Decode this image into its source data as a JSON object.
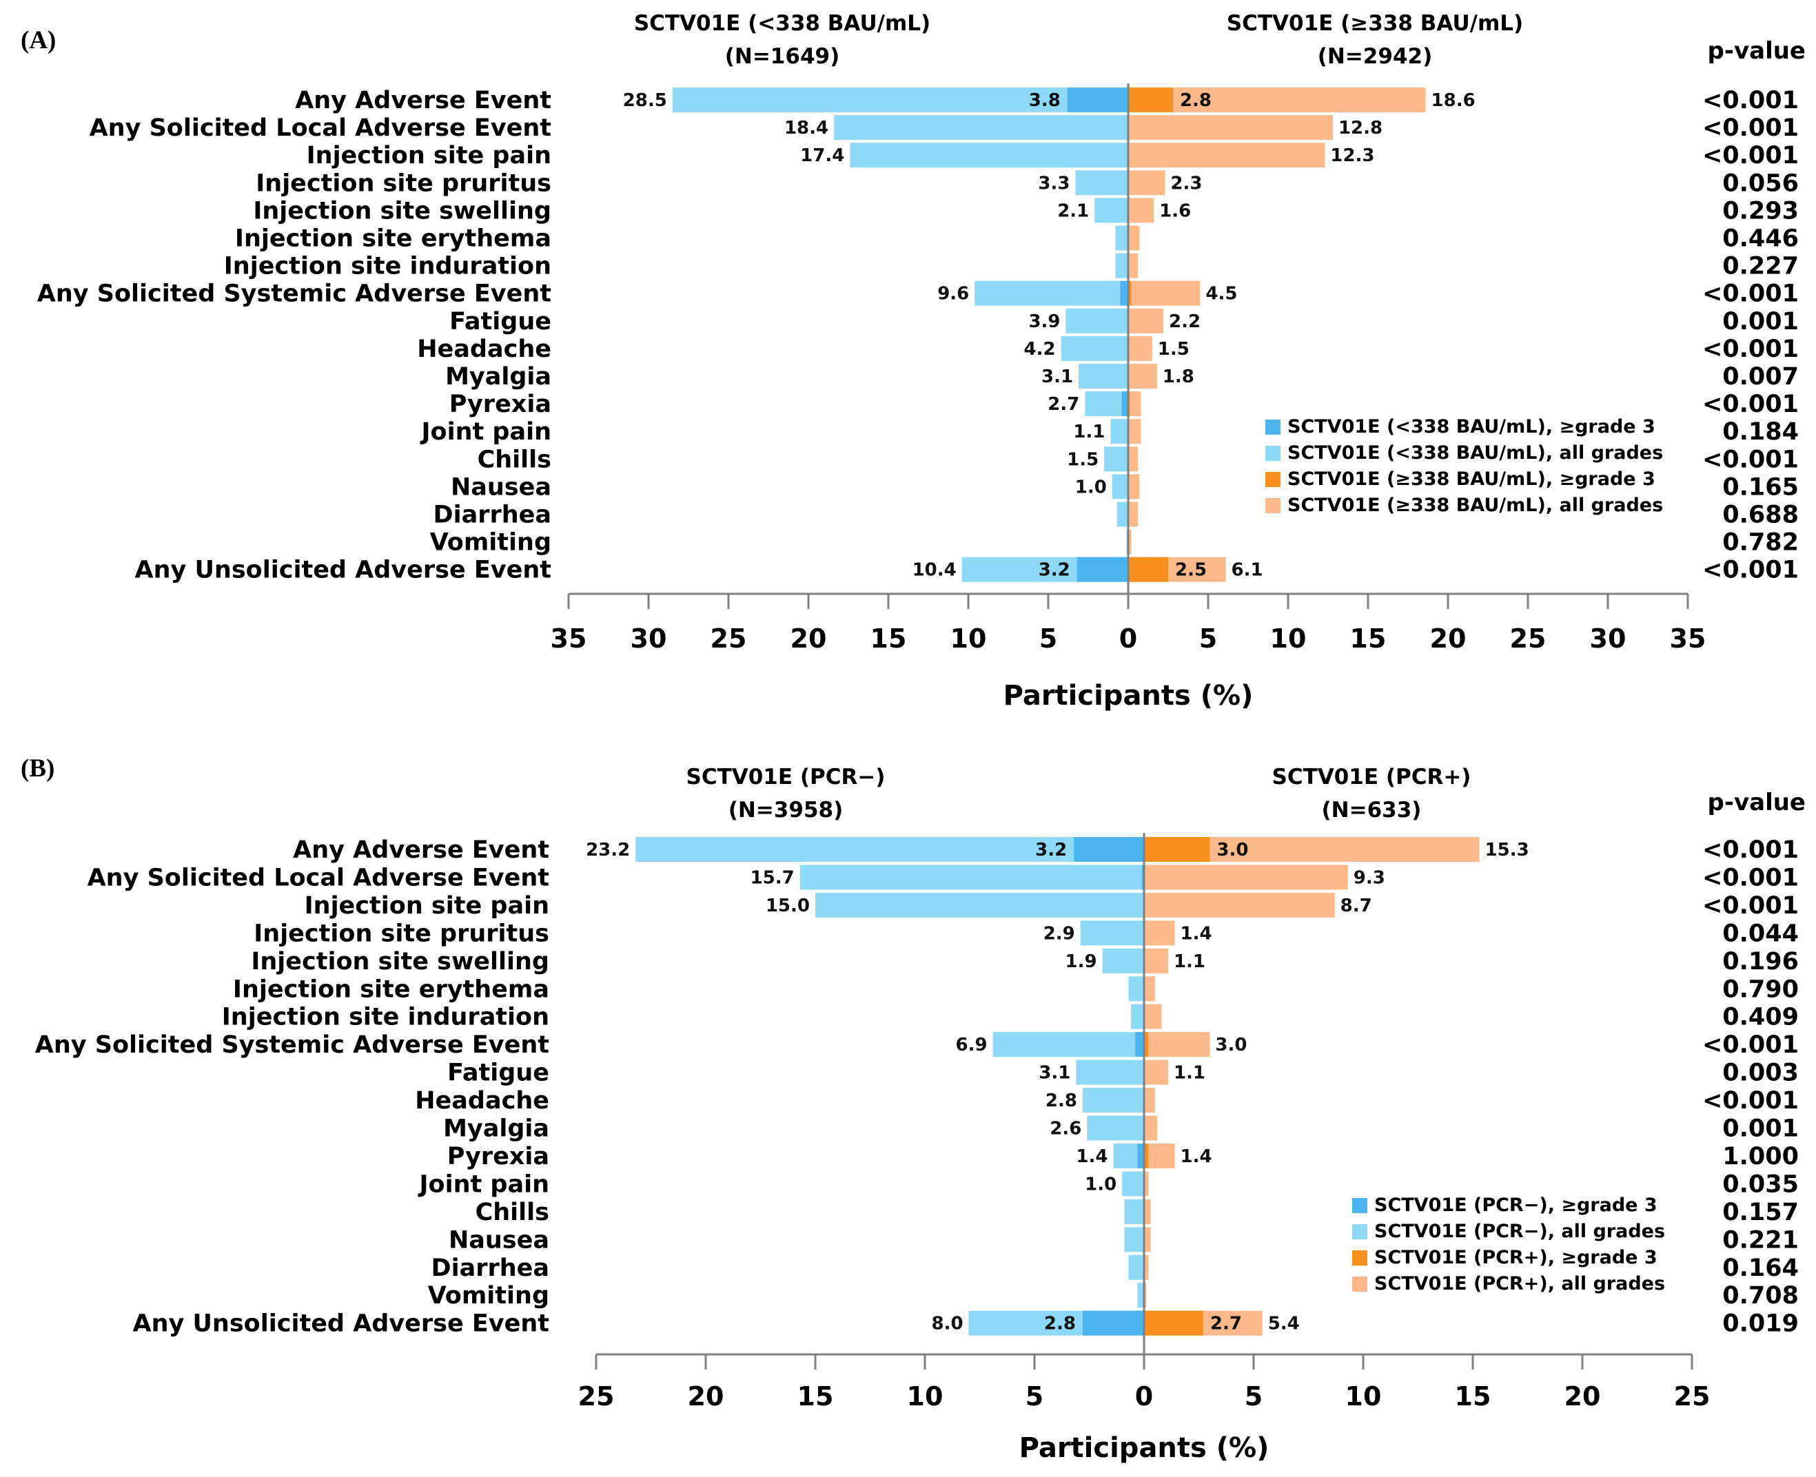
{
  "colors": {
    "left_all": "#8ED8F8",
    "left_g3": "#4BB4EE",
    "right_all": "#FDB989",
    "right_g3": "#F7901E",
    "axis": "#7f7f7f"
  },
  "p_value_header": "p-value",
  "chart_data": [
    {
      "type": "bar",
      "panel_label": "(A)",
      "left_group": {
        "title": "SCTV01E (<338 BAU/mL)",
        "n": "(N=1649)"
      },
      "right_group": {
        "title": "SCTV01E (≥338 BAU/mL)",
        "n": "(N=2942)"
      },
      "xlabel": "Participants (%)",
      "xlim": [
        -35,
        35
      ],
      "ticks": [
        35,
        30,
        25,
        20,
        15,
        10,
        5,
        0,
        5,
        10,
        15,
        20,
        25,
        30,
        35
      ],
      "legend": [
        "SCTV01E (<338 BAU/mL), ≥grade 3",
        "SCTV01E (<338 BAU/mL), all grades",
        "SCTV01E (≥338 BAU/mL), ≥grade 3",
        "SCTV01E (≥338 BAU/mL), all grades"
      ],
      "rows": [
        {
          "label": "Any Adverse Event",
          "left": 28.5,
          "left_label": "28.5",
          "left_g3": 3.8,
          "left_g3_label": "3.8",
          "right": 18.6,
          "right_label": "18.6",
          "right_g3": 2.8,
          "right_g3_label": "2.8",
          "p": "<0.001"
        },
        {
          "label": "Any Solicited Local Adverse Event",
          "left": 18.4,
          "left_label": "18.4",
          "left_g3": 0,
          "left_g3_label": "",
          "right": 12.8,
          "right_label": "12.8",
          "right_g3": 0,
          "right_g3_label": "",
          "p": "<0.001"
        },
        {
          "label": "Injection site pain",
          "left": 17.4,
          "left_label": "17.4",
          "left_g3": 0,
          "left_g3_label": "",
          "right": 12.3,
          "right_label": "12.3",
          "right_g3": 0,
          "right_g3_label": "",
          "p": "<0.001"
        },
        {
          "label": "Injection site pruritus",
          "left": 3.3,
          "left_label": "3.3",
          "left_g3": 0,
          "left_g3_label": "",
          "right": 2.3,
          "right_label": "2.3",
          "right_g3": 0,
          "right_g3_label": "",
          "p": "0.056"
        },
        {
          "label": "Injection site swelling",
          "left": 2.1,
          "left_label": "2.1",
          "left_g3": 0,
          "left_g3_label": "",
          "right": 1.6,
          "right_label": "1.6",
          "right_g3": 0,
          "right_g3_label": "",
          "p": "0.293"
        },
        {
          "label": "Injection site erythema",
          "left": 0.8,
          "left_label": "",
          "left_g3": 0,
          "left_g3_label": "",
          "right": 0.7,
          "right_label": "",
          "right_g3": 0,
          "right_g3_label": "",
          "p": "0.446"
        },
        {
          "label": "Injection site induration",
          "left": 0.8,
          "left_label": "",
          "left_g3": 0,
          "left_g3_label": "",
          "right": 0.6,
          "right_label": "",
          "right_g3": 0,
          "right_g3_label": "",
          "p": "0.227"
        },
        {
          "label": "Any Solicited Systemic Adverse Event",
          "left": 9.6,
          "left_label": "9.6",
          "left_g3": 0.5,
          "left_g3_label": "",
          "right": 4.5,
          "right_label": "4.5",
          "right_g3": 0.2,
          "right_g3_label": "",
          "p": "<0.001"
        },
        {
          "label": "Fatigue",
          "left": 3.9,
          "left_label": "3.9",
          "left_g3": 0,
          "left_g3_label": "",
          "right": 2.2,
          "right_label": "2.2",
          "right_g3": 0,
          "right_g3_label": "",
          "p": "0.001"
        },
        {
          "label": "Headache",
          "left": 4.2,
          "left_label": "4.2",
          "left_g3": 0,
          "left_g3_label": "",
          "right": 1.5,
          "right_label": "1.5",
          "right_g3": 0,
          "right_g3_label": "",
          "p": "<0.001"
        },
        {
          "label": "Myalgia",
          "left": 3.1,
          "left_label": "3.1",
          "left_g3": 0,
          "left_g3_label": "",
          "right": 1.8,
          "right_label": "1.8",
          "right_g3": 0,
          "right_g3_label": "",
          "p": "0.007"
        },
        {
          "label": "Pyrexia",
          "left": 2.7,
          "left_label": "2.7",
          "left_g3": 0.4,
          "left_g3_label": "",
          "right": 0.8,
          "right_label": "",
          "right_g3": 0.1,
          "right_g3_label": "",
          "p": "<0.001"
        },
        {
          "label": "Joint pain",
          "left": 1.1,
          "left_label": "1.1",
          "left_g3": 0,
          "left_g3_label": "",
          "right": 0.8,
          "right_label": "",
          "right_g3": 0,
          "right_g3_label": "",
          "p": "0.184"
        },
        {
          "label": "Chills",
          "left": 1.5,
          "left_label": "1.5",
          "left_g3": 0,
          "left_g3_label": "",
          "right": 0.6,
          "right_label": "",
          "right_g3": 0,
          "right_g3_label": "",
          "p": "<0.001"
        },
        {
          "label": "Nausea",
          "left": 1.0,
          "left_label": "1.0",
          "left_g3": 0,
          "left_g3_label": "",
          "right": 0.7,
          "right_label": "",
          "right_g3": 0,
          "right_g3_label": "",
          "p": "0.165"
        },
        {
          "label": "Diarrhea",
          "left": 0.7,
          "left_label": "",
          "left_g3": 0,
          "left_g3_label": "",
          "right": 0.6,
          "right_label": "",
          "right_g3": 0,
          "right_g3_label": "",
          "p": "0.688"
        },
        {
          "label": "Vomiting",
          "left": 0.1,
          "left_label": "",
          "left_g3": 0,
          "left_g3_label": "",
          "right": 0.2,
          "right_label": "",
          "right_g3": 0,
          "right_g3_label": "",
          "p": "0.782"
        },
        {
          "label": "Any Unsolicited Adverse Event",
          "left": 10.4,
          "left_label": "10.4",
          "left_g3": 3.2,
          "left_g3_label": "3.2",
          "right": 6.1,
          "right_label": "6.1",
          "right_g3": 2.5,
          "right_g3_label": "2.5",
          "p": "<0.001"
        }
      ]
    },
    {
      "type": "bar",
      "panel_label": "(B)",
      "left_group": {
        "title": "SCTV01E (PCR−)",
        "n": "(N=3958)"
      },
      "right_group": {
        "title": "SCTV01E (PCR+)",
        "n": "(N=633)"
      },
      "xlabel": "Participants (%)",
      "xlim": [
        -25,
        25
      ],
      "ticks": [
        25,
        20,
        15,
        10,
        5,
        0,
        5,
        10,
        15,
        20,
        25
      ],
      "legend": [
        "SCTV01E (PCR−), ≥grade 3",
        "SCTV01E (PCR−), all grades",
        "SCTV01E (PCR+), ≥grade 3",
        "SCTV01E (PCR+), all grades"
      ],
      "rows": [
        {
          "label": "Any Adverse Event",
          "left": 23.2,
          "left_label": "23.2",
          "left_g3": 3.2,
          "left_g3_label": "3.2",
          "right": 15.3,
          "right_label": "15.3",
          "right_g3": 3.0,
          "right_g3_label": "3.0",
          "p": "<0.001"
        },
        {
          "label": "Any Solicited Local Adverse Event",
          "left": 15.7,
          "left_label": "15.7",
          "left_g3": 0.1,
          "left_g3_label": "",
          "right": 9.3,
          "right_label": "9.3",
          "right_g3": 0,
          "right_g3_label": "",
          "p": "<0.001"
        },
        {
          "label": "Injection site pain",
          "left": 15.0,
          "left_label": "15.0",
          "left_g3": 0,
          "left_g3_label": "",
          "right": 8.7,
          "right_label": "8.7",
          "right_g3": 0,
          "right_g3_label": "",
          "p": "<0.001"
        },
        {
          "label": "Injection site pruritus",
          "left": 2.9,
          "left_label": "2.9",
          "left_g3": 0,
          "left_g3_label": "",
          "right": 1.4,
          "right_label": "1.4",
          "right_g3": 0,
          "right_g3_label": "",
          "p": "0.044"
        },
        {
          "label": "Injection site swelling",
          "left": 1.9,
          "left_label": "1.9",
          "left_g3": 0,
          "left_g3_label": "",
          "right": 1.1,
          "right_label": "1.1",
          "right_g3": 0,
          "right_g3_label": "",
          "p": "0.196"
        },
        {
          "label": "Injection site erythema",
          "left": 0.7,
          "left_label": "",
          "left_g3": 0,
          "left_g3_label": "",
          "right": 0.5,
          "right_label": "",
          "right_g3": 0,
          "right_g3_label": "",
          "p": "0.790"
        },
        {
          "label": "Injection site induration",
          "left": 0.6,
          "left_label": "",
          "left_g3": 0,
          "left_g3_label": "",
          "right": 0.8,
          "right_label": "",
          "right_g3": 0,
          "right_g3_label": "",
          "p": "0.409"
        },
        {
          "label": "Any Solicited Systemic Adverse Event",
          "left": 6.9,
          "left_label": "6.9",
          "left_g3": 0.4,
          "left_g3_label": "",
          "right": 3.0,
          "right_label": "3.0",
          "right_g3": 0.2,
          "right_g3_label": "",
          "p": "<0.001"
        },
        {
          "label": "Fatigue",
          "left": 3.1,
          "left_label": "3.1",
          "left_g3": 0,
          "left_g3_label": "",
          "right": 1.1,
          "right_label": "1.1",
          "right_g3": 0,
          "right_g3_label": "",
          "p": "0.003"
        },
        {
          "label": "Headache",
          "left": 2.8,
          "left_label": "2.8",
          "left_g3": 0,
          "left_g3_label": "",
          "right": 0.5,
          "right_label": "",
          "right_g3": 0,
          "right_g3_label": "",
          "p": "<0.001"
        },
        {
          "label": "Myalgia",
          "left": 2.6,
          "left_label": "2.6",
          "left_g3": 0,
          "left_g3_label": "",
          "right": 0.6,
          "right_label": "",
          "right_g3": 0,
          "right_g3_label": "",
          "p": "0.001"
        },
        {
          "label": "Pyrexia",
          "left": 1.4,
          "left_label": "1.4",
          "left_g3": 0.3,
          "left_g3_label": "",
          "right": 1.4,
          "right_label": "1.4",
          "right_g3": 0.2,
          "right_g3_label": "",
          "p": "1.000"
        },
        {
          "label": "Joint pain",
          "left": 1.0,
          "left_label": "1.0",
          "left_g3": 0,
          "left_g3_label": "",
          "right": 0.2,
          "right_label": "",
          "right_g3": 0,
          "right_g3_label": "",
          "p": "0.035"
        },
        {
          "label": "Chills",
          "left": 0.9,
          "left_label": "",
          "left_g3": 0,
          "left_g3_label": "",
          "right": 0.3,
          "right_label": "",
          "right_g3": 0,
          "right_g3_label": "",
          "p": "0.157"
        },
        {
          "label": "Nausea",
          "left": 0.9,
          "left_label": "",
          "left_g3": 0,
          "left_g3_label": "",
          "right": 0.3,
          "right_label": "",
          "right_g3": 0,
          "right_g3_label": "",
          "p": "0.221"
        },
        {
          "label": "Diarrhea",
          "left": 0.7,
          "left_label": "",
          "left_g3": 0,
          "left_g3_label": "",
          "right": 0.2,
          "right_label": "",
          "right_g3": 0,
          "right_g3_label": "",
          "p": "0.164"
        },
        {
          "label": "Vomiting",
          "left": 0.3,
          "left_label": "",
          "left_g3": 0,
          "left_g3_label": "",
          "right": 0.1,
          "right_label": "",
          "right_g3": 0,
          "right_g3_label": "",
          "p": "0.708"
        },
        {
          "label": "Any Unsolicited Adverse Event",
          "left": 8.0,
          "left_label": "8.0",
          "left_g3": 2.8,
          "left_g3_label": "2.8",
          "right": 5.4,
          "right_label": "5.4",
          "right_g3": 2.7,
          "right_g3_label": "2.7",
          "p": "0.019"
        }
      ]
    }
  ]
}
